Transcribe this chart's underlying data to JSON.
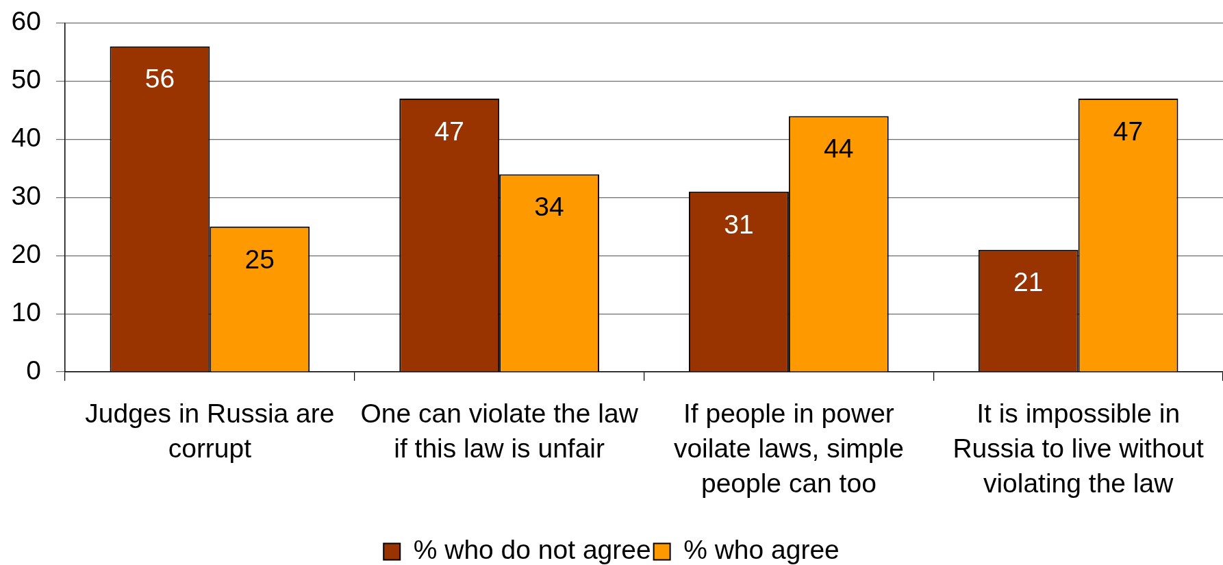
{
  "chart_data": {
    "type": "bar",
    "categories": [
      "Judges in Russia are corrupt",
      "One can violate the law if this law is unfair",
      "If people in power voilate laws, simple people can too",
      "It is impossible in Russia to live without violating the law"
    ],
    "series": [
      {
        "name": "% who do not agree",
        "color": "#993300",
        "values": [
          56,
          47,
          31,
          21
        ]
      },
      {
        "name": "% who agree",
        "color": "#ff9900",
        "values": [
          25,
          34,
          44,
          47
        ]
      }
    ],
    "ylim": [
      0,
      60
    ],
    "yticks": [
      0,
      10,
      20,
      30,
      40,
      50,
      60
    ],
    "grid": "y",
    "legend": "bottom",
    "data_labels": true
  }
}
